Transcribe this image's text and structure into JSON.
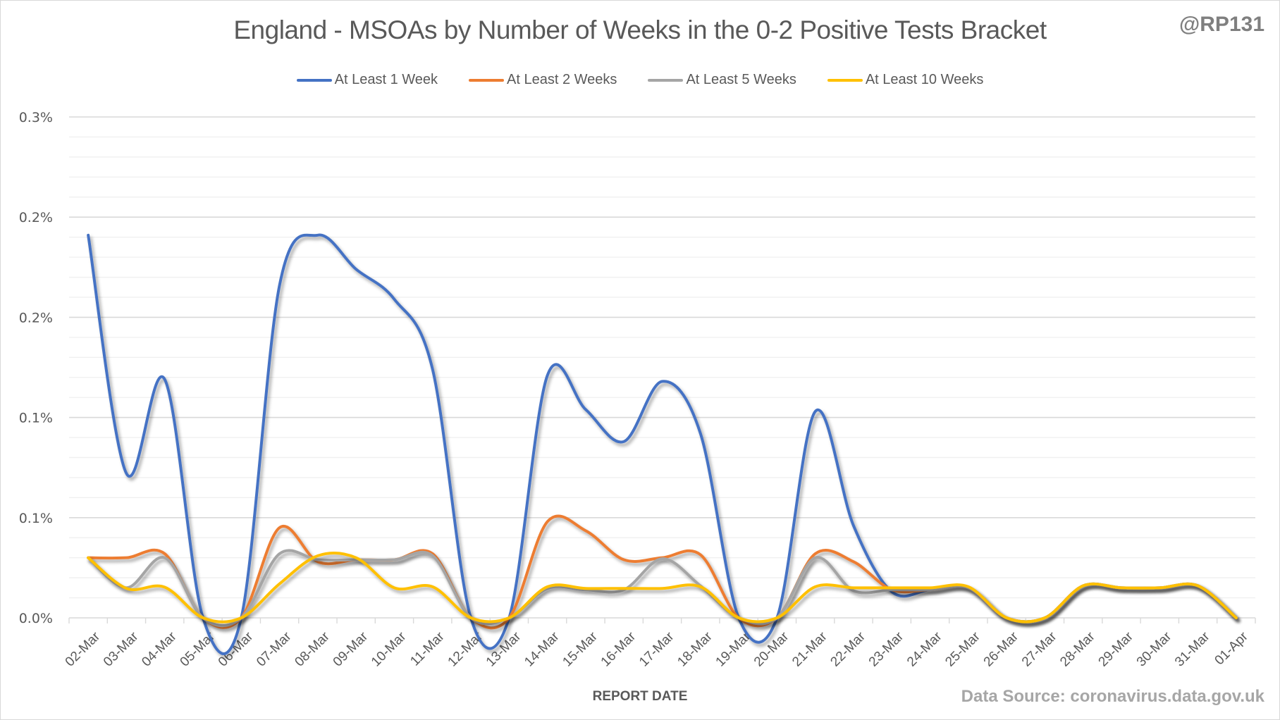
{
  "handle": "@RP131",
  "source": "Data Source: coronavirus.data.gov.uk",
  "chart_data": {
    "type": "line",
    "smooth": true,
    "title": "England - MSOAs by Number of Weeks in the 0-2 Positive Tests Bracket",
    "xlabel": "REPORT DATE",
    "ylabel": "",
    "ylim": [
      0,
      0.25
    ],
    "y_unit": "%",
    "y_major_step": 0.05,
    "y_minor_step": 0.01,
    "y_tick_labels": [
      "0.0%",
      "0.1%",
      "0.1%",
      "0.2%",
      "0.2%",
      "0.3%"
    ],
    "grid": true,
    "legend_position": "top-center",
    "categories": [
      "02-Mar",
      "03-Mar",
      "04-Mar",
      "05-Mar",
      "06-Mar",
      "07-Mar",
      "08-Mar",
      "09-Mar",
      "10-Mar",
      "11-Mar",
      "12-Mar",
      "13-Mar",
      "14-Mar",
      "15-Mar",
      "16-Mar",
      "17-Mar",
      "18-Mar",
      "19-Mar",
      "20-Mar",
      "21-Mar",
      "22-Mar",
      "23-Mar",
      "24-Mar",
      "25-Mar",
      "26-Mar",
      "27-Mar",
      "28-Mar",
      "29-Mar",
      "30-Mar",
      "31-Mar",
      "01-Apr"
    ],
    "series": [
      {
        "name": "At Least 1 Week",
        "color": "#4472C4",
        "values": [
          0.191,
          0.072,
          0.119,
          0,
          0,
          0.166,
          0.191,
          0.174,
          0.159,
          0.124,
          0,
          0,
          0.121,
          0.104,
          0.088,
          0.118,
          0.092,
          0,
          0,
          0.103,
          0.046,
          0.013,
          0.014,
          0.015,
          0,
          0,
          0.016,
          0.015,
          0.015,
          0.016,
          0
        ]
      },
      {
        "name": "At Least 2 Weeks",
        "color": "#ED7D31",
        "values": [
          0.03,
          0.03,
          0.032,
          0,
          0,
          0.045,
          0.028,
          0.029,
          0.029,
          0.032,
          0,
          0,
          0.048,
          0.0435,
          0.029,
          0.03,
          0.0315,
          0,
          0,
          0.032,
          0.028,
          0.014,
          0.014,
          0.015,
          0,
          0,
          0.016,
          0.015,
          0.015,
          0.016,
          0
        ]
      },
      {
        "name": "At Least 5 Weeks",
        "color": "#A5A5A5",
        "values": [
          0.03,
          0.015,
          0.03,
          0,
          0,
          0.032,
          0.029,
          0.029,
          0.029,
          0.031,
          0,
          0,
          0.0147,
          0.014,
          0.014,
          0.0295,
          0.016,
          0,
          0,
          0.03,
          0.0135,
          0.014,
          0.014,
          0.015,
          0,
          0,
          0.016,
          0.015,
          0.015,
          0.016,
          0
        ]
      },
      {
        "name": "At Least 10 Weeks",
        "color": "#FFC000",
        "values": [
          0.03,
          0.0147,
          0.0153,
          0,
          0,
          0.017,
          0.031,
          0.03,
          0.015,
          0.0155,
          0,
          0,
          0.0155,
          0.0147,
          0.0147,
          0.0147,
          0.0155,
          0,
          0,
          0.0155,
          0.015,
          0.015,
          0.015,
          0.0155,
          0,
          0,
          0.016,
          0.015,
          0.015,
          0.016,
          0
        ]
      }
    ]
  }
}
